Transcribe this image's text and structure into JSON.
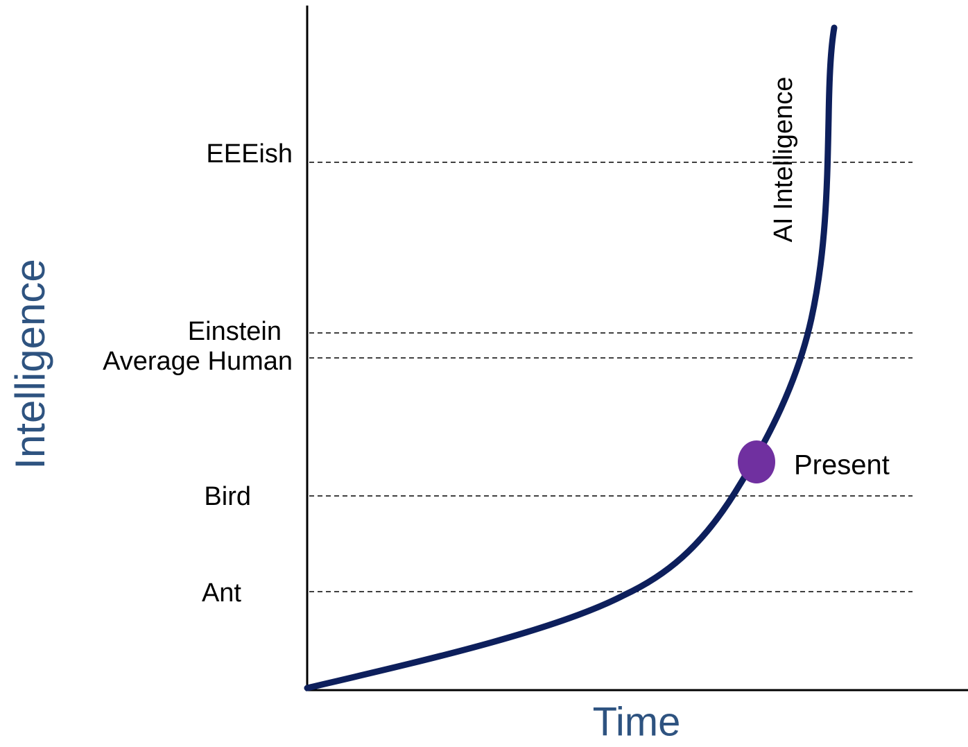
{
  "y_axis_label": "Intelligence",
  "x_axis_label": "Time",
  "levels": [
    "EEEish",
    "Einstein",
    "Average Human",
    "Bird",
    "Ant"
  ],
  "curve_label": "AI Intelligence",
  "marker_label": "Present"
}
